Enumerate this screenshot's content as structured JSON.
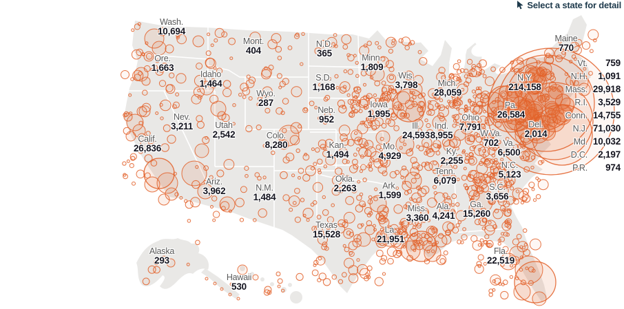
{
  "hint": {
    "label": "Select a state for detail"
  },
  "colors": {
    "bubble": "#e2622b",
    "land": "#e9e8e6",
    "state_border": "#ffffff",
    "label_text": "#595959",
    "value_text": "#14141f",
    "hint_text": "#1e3a4c"
  },
  "chart_data": {
    "type": "bubble-map",
    "title": "",
    "legend_position": "none",
    "notes": "Proportional orange circles over US counties; labels show state totals",
    "map_labels": [
      {
        "state": "Wash.",
        "value": "10,694"
      },
      {
        "state": "Ore.",
        "value": "1,663"
      },
      {
        "state": "Calif.",
        "value": "26,836"
      },
      {
        "state": "Idaho",
        "value": "1,464"
      },
      {
        "state": "Nev.",
        "value": "3,211"
      },
      {
        "state": "Utah",
        "value": "2,542"
      },
      {
        "state": "Ariz.",
        "value": "3,962"
      },
      {
        "state": "Mont.",
        "value": "404"
      },
      {
        "state": "Wyo.",
        "value": "287"
      },
      {
        "state": "Colo.",
        "value": "8,280"
      },
      {
        "state": "N.M.",
        "value": "1,484"
      },
      {
        "state": "N.D.",
        "value": "365"
      },
      {
        "state": "S.D.",
        "value": "1,168"
      },
      {
        "state": "Neb.",
        "value": "952"
      },
      {
        "state": "Kan.",
        "value": "1,494"
      },
      {
        "state": "Okla.",
        "value": "2,263"
      },
      {
        "state": "Texas",
        "value": "15,528"
      },
      {
        "state": "Minn.",
        "value": "1,809"
      },
      {
        "state": "Iowa",
        "value": "1,995"
      },
      {
        "state": "Mo.",
        "value": "4,929"
      },
      {
        "state": "Ark.",
        "value": "1,599"
      },
      {
        "state": "La.",
        "value": "21,951"
      },
      {
        "state": "Wis.",
        "value": "3,798"
      },
      {
        "state": "Ill.",
        "value": "24,593"
      },
      {
        "state": "Ind.",
        "value": "8,955"
      },
      {
        "state": "Mich.",
        "value": "28,059"
      },
      {
        "state": "Ohio",
        "value": "7,791"
      },
      {
        "state": "Ky.",
        "value": "2,255"
      },
      {
        "state": "Tenn.",
        "value": "6,079"
      },
      {
        "state": "Miss.",
        "value": "3,360"
      },
      {
        "state": "Ala.",
        "value": "4,241"
      },
      {
        "state": "Ga.",
        "value": "15,260"
      },
      {
        "state": "Fla.",
        "value": "22,519"
      },
      {
        "state": "W.Va.",
        "value": "702"
      },
      {
        "state": "Va.",
        "value": "6,500"
      },
      {
        "state": "N.C.",
        "value": "5,123"
      },
      {
        "state": "S.C.",
        "value": "3,656"
      },
      {
        "state": "Pa.",
        "value": "26,584"
      },
      {
        "state": "N.Y.",
        "value": "214,158"
      },
      {
        "state": "Del.",
        "value": "2,014"
      },
      {
        "state": "Maine",
        "value": "770"
      },
      {
        "state": "Alaska",
        "value": "293"
      },
      {
        "state": "Hawaii",
        "value": "530"
      }
    ],
    "side_labels": [
      {
        "state": "Vt.",
        "value": "759"
      },
      {
        "state": "N.H.",
        "value": "1,091"
      },
      {
        "state": "Mass.",
        "value": "29,918"
      },
      {
        "state": "R.I.",
        "value": "3,529"
      },
      {
        "state": "Conn.",
        "value": "14,755"
      },
      {
        "state": "N.J.",
        "value": "71,030"
      },
      {
        "state": "Md.",
        "value": "10,032"
      },
      {
        "state": "D.C.",
        "value": "2,197"
      },
      {
        "state": "P.R.",
        "value": "974"
      }
    ]
  }
}
